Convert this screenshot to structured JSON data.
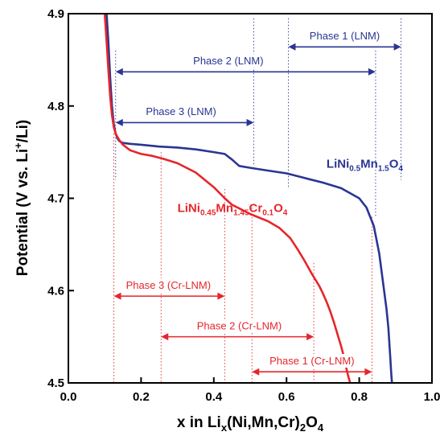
{
  "chart_data": {
    "type": "line",
    "xlabel_parts": [
      "x in Li",
      "x",
      "(Ni,Mn,Cr)",
      "2",
      "O",
      "4"
    ],
    "ylabel_parts": [
      "Potential (V vs. Li",
      "+",
      "/Li)"
    ],
    "xlim": [
      0.0,
      1.0
    ],
    "ylim": [
      4.5,
      4.9
    ],
    "xticks": [
      "0.0",
      "0.2",
      "0.4",
      "0.6",
      "0.8",
      "1.0"
    ],
    "yticks": [
      "4.5",
      "4.6",
      "4.7",
      "4.8",
      "4.9"
    ],
    "grid": false,
    "colors": {
      "lnm": "#2a3593",
      "cr": "#e5262b",
      "axis": "#000000"
    },
    "series": [
      {
        "key": "lnm",
        "label_parts": [
          "LiNi",
          "0.5",
          "Mn",
          "1.5",
          "O",
          "4"
        ],
        "x": [
          0.105,
          0.11,
          0.115,
          0.12,
          0.125,
          0.13,
          0.135,
          0.14,
          0.15,
          0.17,
          0.2,
          0.25,
          0.3,
          0.35,
          0.4,
          0.43,
          0.45,
          0.47,
          0.5,
          0.55,
          0.6,
          0.65,
          0.7,
          0.75,
          0.8,
          0.82,
          0.84,
          0.855,
          0.865,
          0.875,
          0.88,
          0.885,
          0.888,
          0.89
        ],
        "y": [
          4.9,
          4.87,
          4.83,
          4.8,
          4.78,
          4.77,
          4.765,
          4.762,
          4.76,
          4.759,
          4.758,
          4.756,
          4.755,
          4.753,
          4.75,
          4.748,
          4.742,
          4.735,
          4.733,
          4.73,
          4.727,
          4.722,
          4.717,
          4.711,
          4.7,
          4.69,
          4.67,
          4.64,
          4.61,
          4.58,
          4.56,
          4.53,
          4.51,
          4.5
        ]
      },
      {
        "key": "cr",
        "label_parts": [
          "LiNi",
          "0.45",
          "Mn",
          "1.45",
          "Cr",
          "0.1",
          "O",
          "4"
        ],
        "x": [
          0.1,
          0.105,
          0.11,
          0.115,
          0.12,
          0.125,
          0.13,
          0.14,
          0.15,
          0.17,
          0.2,
          0.23,
          0.26,
          0.3,
          0.35,
          0.4,
          0.43,
          0.45,
          0.5,
          0.55,
          0.58,
          0.61,
          0.63,
          0.65,
          0.67,
          0.69,
          0.7,
          0.71,
          0.72,
          0.73,
          0.74,
          0.75,
          0.76,
          0.765,
          0.77,
          0.775
        ],
        "y": [
          4.9,
          4.87,
          4.84,
          4.81,
          4.79,
          4.777,
          4.77,
          4.763,
          4.758,
          4.752,
          4.748,
          4.746,
          4.743,
          4.738,
          4.728,
          4.712,
          4.7,
          4.693,
          4.683,
          4.675,
          4.668,
          4.657,
          4.645,
          4.632,
          4.618,
          4.605,
          4.597,
          4.588,
          4.578,
          4.566,
          4.553,
          4.54,
          4.525,
          4.515,
          4.507,
          4.5
        ]
      }
    ],
    "series_labels": [
      {
        "key": "lnm",
        "x": 0.71,
        "y": 4.733
      },
      {
        "key": "cr",
        "x": 0.3,
        "y": 4.685
      }
    ],
    "guides": [
      {
        "color": "lnm",
        "x": 0.13,
        "y0": 4.86,
        "y1": 4.72
      },
      {
        "color": "lnm",
        "x": 0.51,
        "y0": 4.895,
        "y1": 4.735
      },
      {
        "color": "lnm",
        "x": 0.605,
        "y0": 4.895,
        "y1": 4.71
      },
      {
        "color": "lnm",
        "x": 0.845,
        "y0": 4.86,
        "y1": 4.68
      },
      {
        "color": "lnm",
        "x": 0.915,
        "y0": 4.895,
        "y1": 4.72
      },
      {
        "color": "cr",
        "x": 0.125,
        "y0": 4.77,
        "y1": 4.5
      },
      {
        "color": "cr",
        "x": 0.255,
        "y0": 4.75,
        "y1": 4.5
      },
      {
        "color": "cr",
        "x": 0.43,
        "y0": 4.71,
        "y1": 4.5
      },
      {
        "color": "cr",
        "x": 0.505,
        "y0": 4.69,
        "y1": 4.5
      },
      {
        "color": "cr",
        "x": 0.675,
        "y0": 4.63,
        "y1": 4.5
      },
      {
        "color": "cr",
        "x": 0.835,
        "y0": 4.68,
        "y1": 4.5
      }
    ],
    "annotations": [
      {
        "text": "Phase 1 (LNM)",
        "color": "lnm",
        "x0": 0.605,
        "x1": 0.915,
        "y": 4.864,
        "label_x": 0.76,
        "label_y": 4.872
      },
      {
        "text": "Phase 2 (LNM)",
        "color": "lnm",
        "x0": 0.13,
        "x1": 0.845,
        "y": 4.837,
        "label_x": 0.44,
        "label_y": 4.845
      },
      {
        "text": "Phase 3 (LNM)",
        "color": "lnm",
        "x0": 0.13,
        "x1": 0.51,
        "y": 4.782,
        "label_x": 0.31,
        "label_y": 4.79
      },
      {
        "text": "Phase 3 (Cr-LNM)",
        "color": "cr",
        "x0": 0.125,
        "x1": 0.43,
        "y": 4.594,
        "label_x": 0.275,
        "label_y": 4.602
      },
      {
        "text": "Phase 2 (Cr-LNM)",
        "color": "cr",
        "x0": 0.255,
        "x1": 0.675,
        "y": 4.55,
        "label_x": 0.47,
        "label_y": 4.558
      },
      {
        "text": "Phase 1 (Cr-LNM)",
        "color": "cr",
        "x0": 0.505,
        "x1": 0.835,
        "y": 4.512,
        "label_x": 0.67,
        "label_y": 4.52
      }
    ]
  }
}
